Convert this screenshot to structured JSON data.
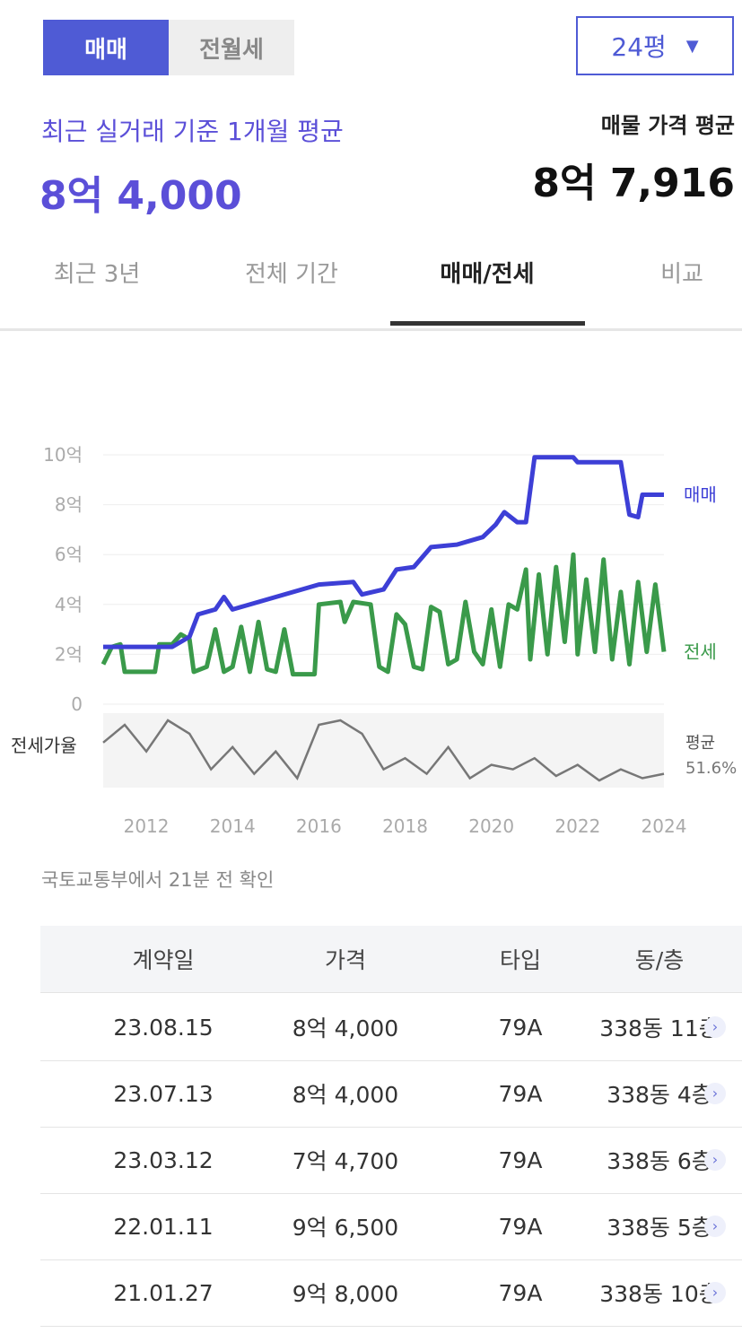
{
  "header": {
    "toggle": [
      "매매",
      "전월세"
    ],
    "size": "24평",
    "recent_label": "최근 실거래 기준 1개월 평균",
    "recent_price": "8억 4,000",
    "listing_label": "매물 가격 평균",
    "listing_price": "8억 7,916"
  },
  "tabs": [
    "최근 3년",
    "전체 기간",
    "매매/전세",
    "비교"
  ],
  "chart_data": {
    "type": "line",
    "ylim": [
      0,
      10
    ],
    "yticks": [
      0,
      {
        "value": 2,
        "label": "2억"
      },
      {
        "value": 4,
        "label": "4억"
      },
      {
        "value": 6,
        "label": "6억"
      },
      {
        "value": 8,
        "label": "8억"
      },
      {
        "value": 10,
        "label": "10억"
      }
    ],
    "xlim": [
      2011,
      2024
    ],
    "xticks": [
      2012,
      2014,
      2016,
      2018,
      2020,
      2022,
      2024
    ],
    "series": [
      {
        "name": "매매",
        "color": "#3d3fd6",
        "x": [
          2011.0,
          2012.6,
          2013.0,
          2013.2,
          2013.6,
          2013.8,
          2014.0,
          2016.0,
          2016.8,
          2017.0,
          2017.5,
          2017.8,
          2018.2,
          2018.6,
          2019.2,
          2019.8,
          2020.1,
          2020.3,
          2020.6,
          2020.8,
          2021.0,
          2021.9,
          2022.0,
          2023.0,
          2023.2,
          2023.4,
          2023.5,
          2024.0
        ],
        "values": [
          2.3,
          2.3,
          2.7,
          3.6,
          3.8,
          4.3,
          3.8,
          4.8,
          4.9,
          4.4,
          4.6,
          5.4,
          5.5,
          6.3,
          6.4,
          6.7,
          7.2,
          7.7,
          7.3,
          7.3,
          9.9,
          9.9,
          9.7,
          9.7,
          7.6,
          7.5,
          8.4,
          8.4
        ]
      },
      {
        "name": "전세",
        "color": "#3a9a4a",
        "x": [
          2011.0,
          2011.2,
          2011.4,
          2011.5,
          2012.2,
          2012.3,
          2012.6,
          2012.8,
          2013.0,
          2013.1,
          2013.4,
          2013.6,
          2013.8,
          2014.0,
          2014.2,
          2014.4,
          2014.6,
          2014.8,
          2015.0,
          2015.2,
          2015.4,
          2015.9,
          2016.0,
          2016.5,
          2016.6,
          2016.8,
          2017.2,
          2017.4,
          2017.6,
          2017.8,
          2018.0,
          2018.2,
          2018.4,
          2018.6,
          2018.8,
          2019.0,
          2019.2,
          2019.4,
          2019.6,
          2019.8,
          2020.0,
          2020.2,
          2020.4,
          2020.6,
          2020.8,
          2020.9,
          2021.1,
          2021.3,
          2021.5,
          2021.7,
          2021.9,
          2022.0,
          2022.2,
          2022.4,
          2022.6,
          2022.8,
          2023.0,
          2023.2,
          2023.4,
          2023.6,
          2023.8,
          2024.0
        ],
        "values": [
          1.6,
          2.3,
          2.4,
          1.3,
          1.3,
          2.4,
          2.4,
          2.8,
          2.6,
          1.3,
          1.5,
          3.0,
          1.3,
          1.5,
          3.1,
          1.3,
          3.3,
          1.4,
          1.3,
          3.0,
          1.2,
          1.2,
          4.0,
          4.1,
          3.3,
          4.1,
          4.0,
          1.5,
          1.3,
          3.6,
          3.2,
          1.5,
          1.4,
          3.9,
          3.7,
          1.6,
          1.8,
          4.1,
          2.1,
          1.6,
          3.8,
          1.5,
          4.0,
          3.8,
          5.4,
          1.8,
          5.2,
          2.0,
          5.5,
          2.5,
          6.0,
          2.0,
          5.0,
          2.1,
          5.8,
          1.8,
          4.5,
          1.6,
          4.9,
          2.1,
          4.8,
          2.1
        ]
      }
    ],
    "ratio": {
      "name": "전세가율",
      "average_label": "평균",
      "average": "51.6%",
      "x": [
        2011.0,
        2011.5,
        2012.0,
        2012.5,
        2013.0,
        2013.5,
        2014.0,
        2014.5,
        2015.0,
        2015.5,
        2016.0,
        2016.5,
        2017.0,
        2017.5,
        2018.0,
        2018.5,
        2019.0,
        2019.5,
        2020.0,
        2020.5,
        2021.0,
        2021.5,
        2022.0,
        2022.5,
        2023.0,
        2023.5,
        2024.0
      ],
      "values": [
        62,
        70,
        58,
        72,
        66,
        50,
        60,
        48,
        58,
        46,
        70,
        72,
        66,
        50,
        55,
        48,
        60,
        46,
        52,
        50,
        55,
        47,
        52,
        45,
        50,
        46,
        48
      ]
    }
  },
  "source": "국토교통부에서 21분 전 확인",
  "table": {
    "header": [
      "계약일",
      "가격",
      "타입",
      "동/층"
    ],
    "rows": [
      [
        "23.08.15",
        "8억 4,000",
        "79A",
        "338동 11층"
      ],
      [
        "23.07.13",
        "8억 4,000",
        "79A",
        "338동 4층"
      ],
      [
        "23.03.12",
        "7억 4,700",
        "79A",
        "338동 6층"
      ],
      [
        "22.01.11",
        "9억 6,500",
        "79A",
        "338동 5층"
      ],
      [
        "21.01.27",
        "9억 8,000",
        "79A",
        "338동 10층"
      ]
    ]
  }
}
